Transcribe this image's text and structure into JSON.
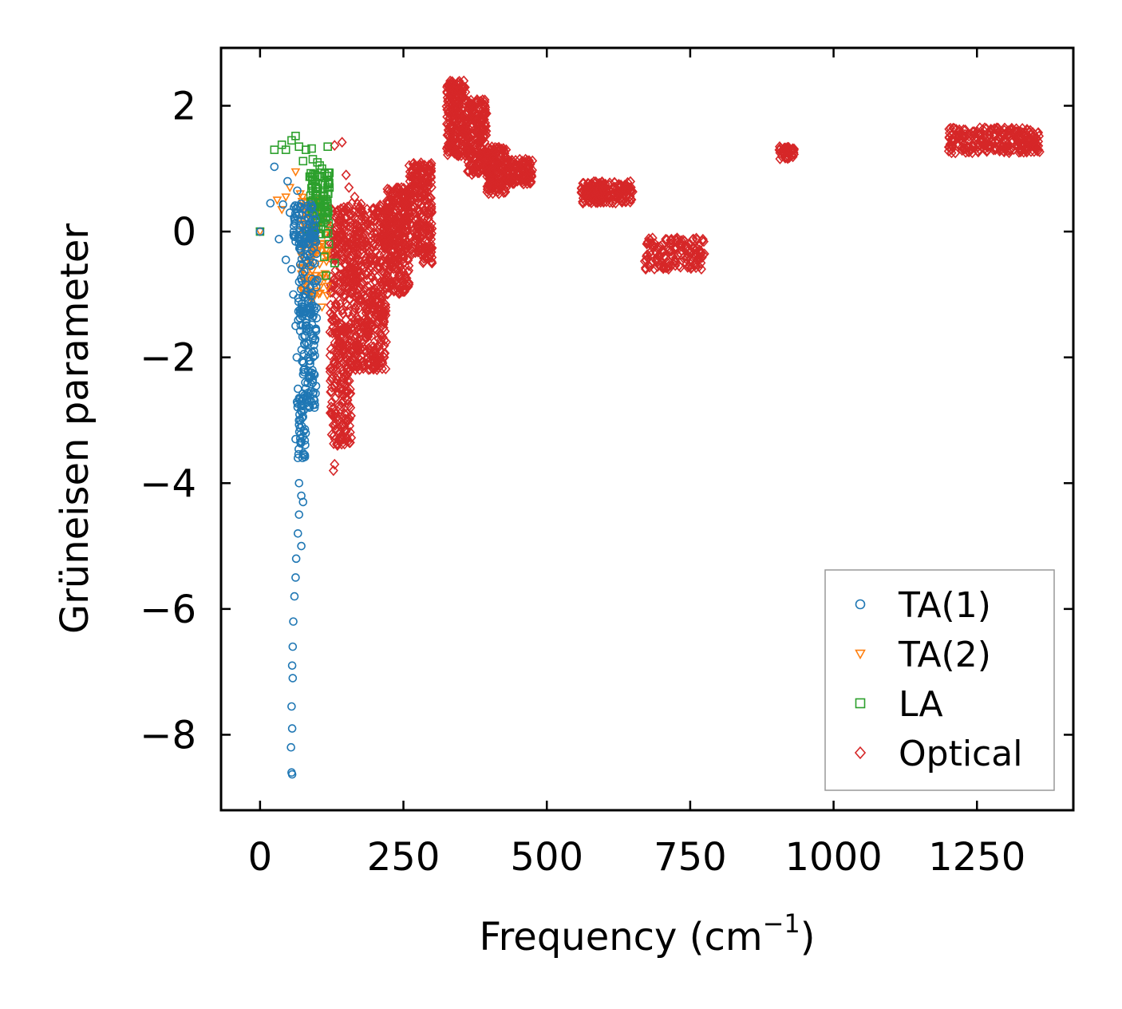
{
  "chart_data": {
    "type": "scatter",
    "title": "",
    "xlabel": "Frequency (cm",
    "xlabel_sup": "−1",
    "xlabel_close": ")",
    "ylabel": "Grüneisen parameter",
    "xlim": [
      -68,
      1418
    ],
    "ylim": [
      -9.2,
      2.92
    ],
    "xticks": [
      0,
      250,
      500,
      750,
      1000,
      1250
    ],
    "xtick_labels": [
      "0",
      "250",
      "500",
      "750",
      "1000",
      "1250"
    ],
    "yticks": [
      2,
      0,
      -2,
      -4,
      -6,
      -8
    ],
    "ytick_labels": [
      "2",
      "0",
      "−2",
      "−4",
      "−6",
      "−8"
    ],
    "grid": false,
    "legend_position": "lower-right",
    "series": [
      {
        "name": "TA(1)",
        "label": "TA(1)",
        "marker": "circle",
        "color": "#1f77b4",
        "points": [
          [
            0,
            0
          ],
          [
            18,
            0.45
          ],
          [
            25,
            1.03
          ],
          [
            33,
            -0.12
          ],
          [
            40,
            0.43
          ],
          [
            45,
            -0.45
          ],
          [
            48,
            0.8
          ],
          [
            52,
            0.3
          ],
          [
            55,
            -0.6
          ],
          [
            58,
            -1.0
          ],
          [
            60,
            0.2
          ],
          [
            62,
            -1.5
          ],
          [
            64,
            -2.0
          ],
          [
            66,
            -2.5
          ],
          [
            68,
            -3.0
          ],
          [
            70,
            -1.3
          ],
          [
            72,
            -2.7
          ],
          [
            74,
            -3.6
          ],
          [
            76,
            -2.2
          ],
          [
            78,
            -1.8
          ],
          [
            80,
            -1.0
          ],
          [
            82,
            -0.5
          ],
          [
            84,
            -2.0
          ],
          [
            86,
            -2.8
          ],
          [
            88,
            -1.2
          ],
          [
            90,
            -0.3
          ],
          [
            92,
            -2.4
          ],
          [
            94,
            -1.9
          ],
          [
            95,
            -2.8
          ],
          [
            68,
            -4.0
          ],
          [
            72,
            -4.2
          ],
          [
            75,
            -4.3
          ],
          [
            66,
            -4.8
          ],
          [
            63,
            -5.2
          ],
          [
            62,
            -5.5
          ],
          [
            60,
            -5.8
          ],
          [
            58,
            -6.2
          ],
          [
            57,
            -6.6
          ],
          [
            56,
            -6.9
          ],
          [
            57,
            -7.1
          ],
          [
            55,
            -7.55
          ],
          [
            56,
            -7.9
          ],
          [
            54,
            -8.2
          ],
          [
            55,
            -8.6
          ],
          [
            56,
            -8.63
          ],
          [
            65,
            0.65
          ],
          [
            70,
            0.4
          ],
          [
            75,
            0.1
          ],
          [
            80,
            -0.1
          ],
          [
            85,
            0.2
          ],
          [
            62,
            -3.3
          ],
          [
            66,
            -3.6
          ],
          [
            72,
            -5.0
          ],
          [
            68,
            -4.5
          ]
        ],
        "bands": [
          {
            "x": [
              58,
              98
            ],
            "ylo": -0.2,
            "yhi": 0.45,
            "n": 60
          },
          {
            "x": [
              66,
              100
            ],
            "ylo": -1.6,
            "yhi": 0.0,
            "n": 90
          },
          {
            "x": [
              72,
              98
            ],
            "ylo": -2.8,
            "yhi": -1.2,
            "n": 80
          },
          {
            "x": [
              64,
              80
            ],
            "ylo": -3.6,
            "yhi": -2.6,
            "n": 40
          }
        ]
      },
      {
        "name": "TA(2)",
        "label": "TA(2)",
        "marker": "triangle-down",
        "color": "#ff7f0e",
        "points": [
          [
            0,
            0
          ],
          [
            30,
            0.5
          ],
          [
            38,
            0.35
          ],
          [
            45,
            0.55
          ],
          [
            52,
            0.7
          ],
          [
            62,
            0.95
          ],
          [
            70,
            0.6
          ],
          [
            78,
            0.3
          ],
          [
            85,
            0.1
          ],
          [
            92,
            -0.4
          ],
          [
            100,
            0.3
          ],
          [
            105,
            -0.8
          ],
          [
            108,
            -1.2
          ],
          [
            110,
            -0.2
          ],
          [
            96,
            0.5
          ],
          [
            88,
            -1.0
          ]
        ],
        "bands": [
          {
            "x": [
              72,
              118
            ],
            "ylo": -1.1,
            "yhi": 0.55,
            "n": 110
          }
        ]
      },
      {
        "name": "LA",
        "label": "LA",
        "marker": "square",
        "color": "#2ca02c",
        "points": [
          [
            0,
            0
          ],
          [
            25,
            1.3
          ],
          [
            38,
            1.38
          ],
          [
            45,
            1.3
          ],
          [
            55,
            1.45
          ],
          [
            62,
            1.52
          ],
          [
            68,
            1.35
          ],
          [
            75,
            1.12
          ],
          [
            80,
            1.3
          ],
          [
            90,
            1.32
          ],
          [
            100,
            1.1
          ],
          [
            108,
            1.0
          ],
          [
            118,
            1.35
          ],
          [
            120,
            -0.2
          ],
          [
            130,
            -0.5
          ],
          [
            112,
            -0.4
          ],
          [
            115,
            -0.7
          ],
          [
            92,
            1.15
          ],
          [
            104,
            1.05
          ]
        ],
        "bands": [
          {
            "x": [
              82,
              122
            ],
            "ylo": -0.1,
            "yhi": 0.95,
            "n": 90
          }
        ]
      },
      {
        "name": "Optical",
        "label": "Optical",
        "marker": "diamond",
        "color": "#d62728",
        "points": [
          [
            130,
            1.37
          ],
          [
            143,
            1.42
          ],
          [
            150,
            0.9
          ],
          [
            155,
            0.7
          ],
          [
            165,
            0.55
          ],
          [
            150,
            0.35
          ],
          [
            160,
            0.45
          ],
          [
            140,
            0.15
          ],
          [
            130,
            -3.7
          ],
          [
            128,
            -3.8
          ],
          [
            135,
            -3.4
          ],
          [
            140,
            -3.1
          ],
          [
            138,
            -2.5
          ],
          [
            260,
            1.05
          ],
          [
            275,
            0.8
          ],
          [
            230,
            -0.8
          ],
          [
            250,
            -0.5
          ],
          [
            300,
            -0.5
          ],
          [
            290,
            -0.3
          ],
          [
            180,
            -1.5
          ],
          [
            210,
            -0.8
          ]
        ],
        "bands": [
          {
            "x": [
              122,
              160
            ],
            "ylo": -3.4,
            "yhi": 0.4,
            "n": 380
          },
          {
            "x": [
              160,
              220
            ],
            "ylo": -2.2,
            "yhi": 0.45,
            "n": 480
          },
          {
            "x": [
              220,
              260
            ],
            "ylo": -1.0,
            "yhi": 0.7,
            "n": 300
          },
          {
            "x": [
              260,
              300
            ],
            "ylo": -0.5,
            "yhi": 1.1,
            "n": 240
          },
          {
            "x": [
              325,
              360
            ],
            "ylo": 1.2,
            "yhi": 2.4,
            "n": 220
          },
          {
            "x": [
              360,
              395
            ],
            "ylo": 0.9,
            "yhi": 2.1,
            "n": 200
          },
          {
            "x": [
              395,
              430
            ],
            "ylo": 0.6,
            "yhi": 1.35,
            "n": 150
          },
          {
            "x": [
              430,
              475
            ],
            "ylo": 0.75,
            "yhi": 1.15,
            "n": 120
          },
          {
            "x": [
              560,
              650
            ],
            "ylo": 0.45,
            "yhi": 0.8,
            "n": 180
          },
          {
            "x": [
              670,
              775
            ],
            "ylo": -0.6,
            "yhi": -0.1,
            "n": 160
          },
          {
            "x": [
              905,
              932
            ],
            "ylo": 1.15,
            "yhi": 1.35,
            "n": 40
          },
          {
            "x": [
              1200,
              1360
            ],
            "ylo": 1.25,
            "yhi": 1.65,
            "n": 260
          }
        ]
      }
    ]
  }
}
